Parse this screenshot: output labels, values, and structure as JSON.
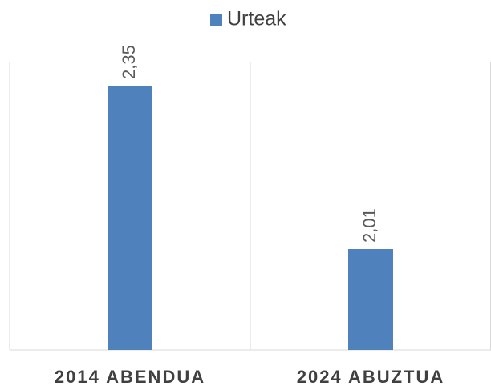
{
  "chart_data": {
    "type": "bar",
    "categories": [
      "2014 ABENDUA",
      "2024 ABUZTUA"
    ],
    "series": [
      {
        "name": "Urteak",
        "color": "#4f81bd",
        "values": [
          2.35,
          2.01
        ],
        "value_labels": [
          "2,35",
          "2,01"
        ]
      }
    ],
    "ylim": [
      1.8,
      2.4
    ],
    "legend": "top"
  }
}
